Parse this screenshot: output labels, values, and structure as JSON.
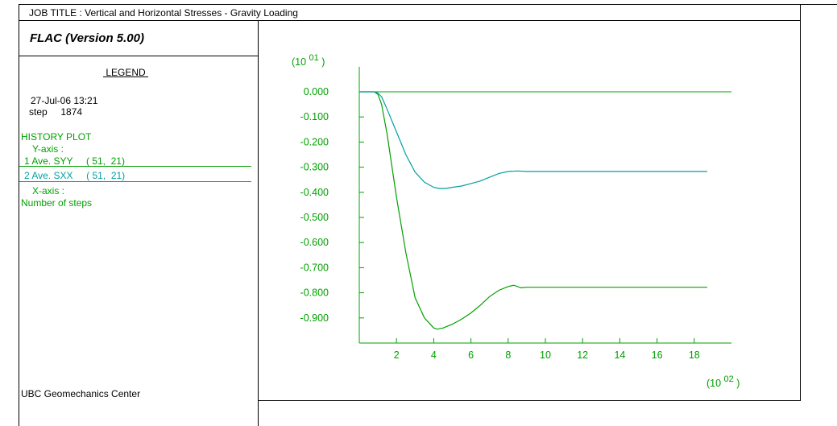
{
  "job_title": "JOB TITLE : Vertical and Horizontal Stresses - Gravity Loading",
  "program": "FLAC (Version 5.00)",
  "legend": {
    "title": " LEGEND ",
    "date": "27-Jul-06  13:21",
    "step": "step     1874",
    "plot_type": "HISTORY PLOT",
    "y_axis_label": "Y-axis :",
    "series1_label": "1 Ave. SYY     ( 51,  21)",
    "series2_label": "2 Ave. SXX     ( 51,  21)",
    "x_axis_label": "X-axis :",
    "x_axis_name": "Number of steps"
  },
  "credit": "UBC Geomechanics Center",
  "colors": {
    "syy": "#00a000",
    "sxx": "#00a0a0",
    "axis": "#00a000",
    "frame": "#000000"
  },
  "chart_data": {
    "type": "line",
    "y_multiplier": "(10 01 )",
    "x_multiplier": "(10 02 )",
    "y_ticks": [
      "0.000",
      "-0.100",
      "-0.200",
      "-0.300",
      "-0.400",
      "-0.500",
      "-0.600",
      "-0.700",
      "-0.800",
      "-0.900"
    ],
    "x_ticks": [
      "2",
      "4",
      "6",
      "8",
      "10",
      "12",
      "14",
      "16",
      "18"
    ],
    "xlim": [
      0,
      20
    ],
    "ylim": [
      -1.0,
      0.1
    ],
    "reference_line_y": 0.0,
    "series": [
      {
        "name": "1 Ave. SYY     ( 51,  21)",
        "color": "#00a000",
        "x": [
          0.0,
          0.8,
          1.0,
          1.2,
          1.5,
          2.0,
          2.5,
          3.0,
          3.5,
          4.0,
          4.2,
          4.5,
          5.0,
          5.5,
          6.0,
          6.5,
          7.0,
          7.5,
          8.0,
          8.3,
          8.7,
          9.0,
          10.0,
          12.0,
          14.0,
          16.0,
          18.7
        ],
        "y": [
          0.0,
          0.0,
          -0.01,
          -0.05,
          -0.17,
          -0.42,
          -0.64,
          -0.82,
          -0.9,
          -0.94,
          -0.945,
          -0.94,
          -0.925,
          -0.905,
          -0.88,
          -0.85,
          -0.815,
          -0.79,
          -0.775,
          -0.77,
          -0.78,
          -0.778,
          -0.778,
          -0.778,
          -0.778,
          -0.778,
          -0.778
        ]
      },
      {
        "name": "2 Ave. SXX     ( 51,  21)",
        "color": "#00a0a0",
        "x": [
          0.0,
          0.8,
          1.0,
          1.2,
          1.5,
          2.0,
          2.5,
          3.0,
          3.5,
          4.0,
          4.3,
          4.6,
          5.0,
          5.5,
          6.0,
          6.5,
          7.0,
          7.5,
          8.0,
          8.5,
          9.0,
          10.0,
          12.0,
          14.0,
          16.0,
          18.7
        ],
        "y": [
          0.0,
          0.0,
          -0.005,
          -0.02,
          -0.07,
          -0.16,
          -0.25,
          -0.32,
          -0.36,
          -0.38,
          -0.385,
          -0.385,
          -0.38,
          -0.375,
          -0.365,
          -0.355,
          -0.34,
          -0.325,
          -0.317,
          -0.315,
          -0.317,
          -0.317,
          -0.317,
          -0.317,
          -0.317,
          -0.317
        ]
      }
    ]
  }
}
